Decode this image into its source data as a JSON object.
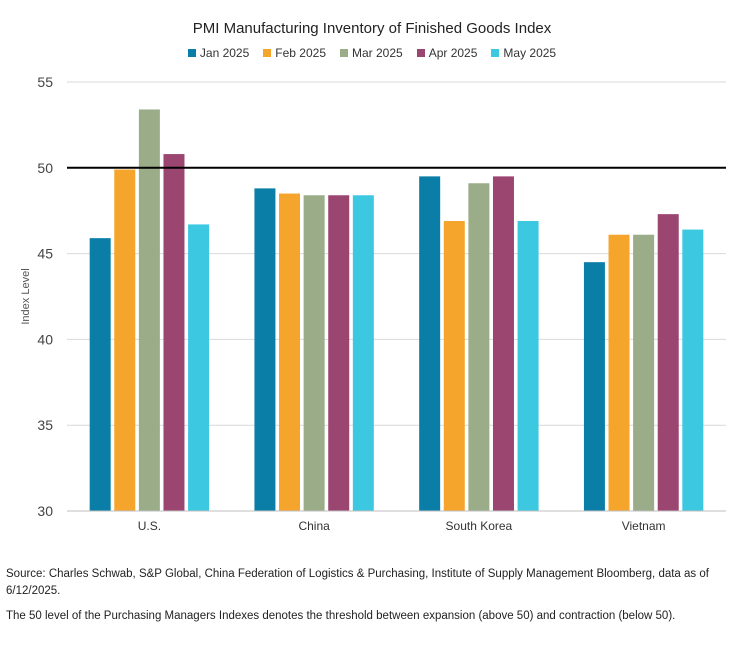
{
  "chart_data": {
    "type": "bar",
    "title": "PMI Manufacturing Inventory of Finished Goods Index",
    "ylabel": "Index Level",
    "xlabel": "",
    "ylim": [
      30,
      55
    ],
    "yticks": [
      30,
      35,
      40,
      45,
      50,
      55
    ],
    "grid": true,
    "legend_position": "top",
    "reference_line": 50,
    "categories": [
      "U.S.",
      "China",
      "South Korea",
      "Vietnam"
    ],
    "series": [
      {
        "name": "Jan 2025",
        "color": "#0a7ea6",
        "values": [
          45.9,
          48.8,
          49.5,
          44.5
        ]
      },
      {
        "name": "Feb 2025",
        "color": "#f5a52c",
        "values": [
          49.9,
          48.5,
          46.9,
          46.1
        ]
      },
      {
        "name": "Mar 2025",
        "color": "#9aad88",
        "values": [
          53.4,
          48.4,
          49.1,
          46.1
        ]
      },
      {
        "name": "Apr 2025",
        "color": "#9b4571",
        "values": [
          50.8,
          48.4,
          49.5,
          47.3
        ]
      },
      {
        "name": "May 2025",
        "color": "#3cc8e0",
        "values": [
          46.7,
          48.4,
          46.9,
          46.4
        ]
      }
    ]
  },
  "notes": {
    "source": "Source: Charles Schwab, S&P Global, China Federation of Logistics & Purchasing, Institute of Supply Management Bloomberg, data as of 6/12/2025.",
    "threshold": "The 50 level of the Purchasing Managers Indexes denotes the threshold between expansion (above 50) and contraction (below 50)."
  }
}
